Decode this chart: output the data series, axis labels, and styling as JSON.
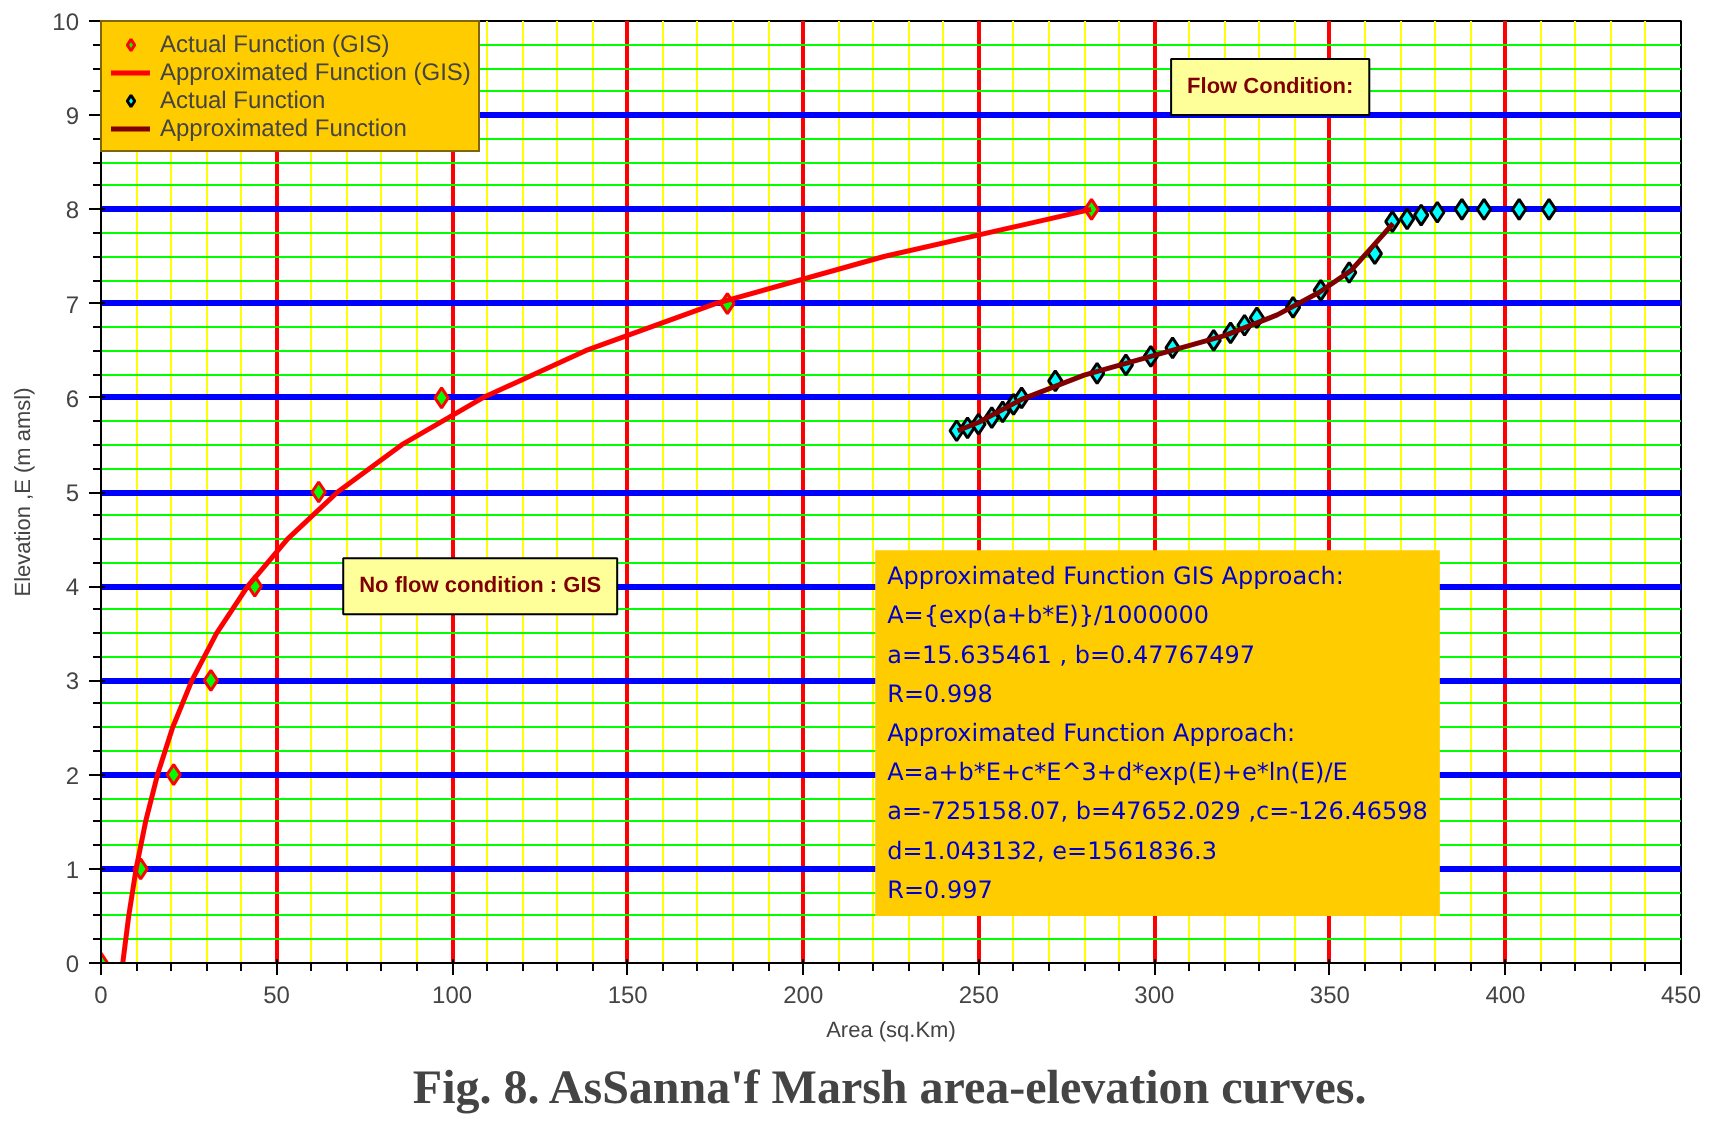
{
  "chart_data": {
    "type": "scatter",
    "title": "Fig. 8. AsSanna'f Marsh area-elevation curves.",
    "xlabel": "Area (sq.Km)",
    "ylabel": "Elevation ,E (m amsl)",
    "xlim": [
      0,
      450
    ],
    "xticks": [
      0,
      {
        "value": 10,
        "label": null
      },
      {
        "value": 20,
        "label": null
      },
      {
        "value": 30,
        "label": null
      },
      {
        "value": 40,
        "label": null
      },
      50,
      {
        "value": 60,
        "label": null
      },
      {
        "value": 70,
        "label": null
      },
      {
        "value": 80,
        "label": null
      },
      {
        "value": 90,
        "label": null
      },
      100,
      {
        "value": 110,
        "label": null
      },
      {
        "value": 120,
        "label": null
      },
      {
        "value": 130,
        "label": null
      },
      {
        "value": 140,
        "label": null
      },
      150,
      {
        "value": 160,
        "label": null
      },
      {
        "value": 170,
        "label": null
      },
      {
        "value": 180,
        "label": null
      },
      {
        "value": 190,
        "label": null
      },
      200,
      {
        "value": 210,
        "label": null
      },
      {
        "value": 220,
        "label": null
      },
      {
        "value": 230,
        "label": null
      },
      {
        "value": 240,
        "label": null
      },
      250,
      {
        "value": 260,
        "label": null
      },
      {
        "value": 270,
        "label": null
      },
      {
        "value": 280,
        "label": null
      },
      {
        "value": 290,
        "label": null
      },
      300,
      {
        "value": 310,
        "label": null
      },
      {
        "value": 320,
        "label": null
      },
      {
        "value": 330,
        "label": null
      },
      {
        "value": 340,
        "label": null
      },
      350,
      {
        "value": 360,
        "label": null
      },
      {
        "value": 370,
        "label": null
      },
      {
        "value": 380,
        "label": null
      },
      {
        "value": 390,
        "label": null
      },
      400,
      {
        "value": 410,
        "label": null
      },
      {
        "value": 420,
        "label": null
      },
      {
        "value": 430,
        "label": null
      },
      {
        "value": 440,
        "label": null
      },
      450
    ],
    "ylim": [
      0,
      10
    ],
    "yticks": [
      0,
      {
        "value": 0.25,
        "label": null
      },
      {
        "value": 0.5,
        "label": null
      },
      {
        "value": 0.75,
        "label": null
      },
      1,
      {
        "value": 1.25,
        "label": null
      },
      {
        "value": 1.5,
        "label": null
      },
      {
        "value": 1.75,
        "label": null
      },
      2,
      {
        "value": 2.25,
        "label": null
      },
      {
        "value": 2.5,
        "label": null
      },
      {
        "value": 2.75,
        "label": null
      },
      3,
      {
        "value": 3.25,
        "label": null
      },
      {
        "value": 3.5,
        "label": null
      },
      {
        "value": 3.75,
        "label": null
      },
      4,
      {
        "value": 4.25,
        "label": null
      },
      {
        "value": 4.5,
        "label": null
      },
      {
        "value": 4.75,
        "label": null
      },
      5,
      {
        "value": 5.25,
        "label": null
      },
      {
        "value": 5.5,
        "label": null
      },
      {
        "value": 5.75,
        "label": null
      },
      6,
      {
        "value": 6.25,
        "label": null
      },
      {
        "value": 6.5,
        "label": null
      },
      {
        "value": 6.75,
        "label": null
      },
      7,
      {
        "value": 7.25,
        "label": null
      },
      {
        "value": 7.5,
        "label": null
      },
      {
        "value": 7.75,
        "label": null
      },
      8,
      {
        "value": 8.25,
        "label": null
      },
      {
        "value": 8.5,
        "label": null
      },
      {
        "value": 8.75,
        "label": null
      },
      9,
      {
        "value": 9.25,
        "label": null
      },
      {
        "value": 9.5,
        "label": null
      },
      {
        "value": 9.75,
        "label": null
      },
      10
    ],
    "grid": true,
    "legend": "top left",
    "series": [
      {
        "name": "Actual Function (GIS)",
        "marker": "diamond",
        "color": "#00ff00",
        "x": [
          0,
          11.3,
          20.7,
          31.3,
          43.8,
          62,
          97,
          178.4,
          282.1
        ],
        "values": [
          0,
          1,
          2,
          3,
          4,
          5,
          6,
          7,
          8
        ]
      },
      {
        "name": "Approximated Function (GIS)",
        "type": "line",
        "color": "#ff0000",
        "x": [
          6.2,
          7.9,
          10,
          12.7,
          16.1,
          20.4,
          25.9,
          32.9,
          41.8,
          53.1,
          67.4,
          85.6,
          108.7,
          138,
          175,
          223,
          282
        ],
        "values": [
          0,
          0.5,
          1,
          1.5,
          2,
          2.5,
          3,
          3.5,
          4,
          4.5,
          5,
          5.5,
          6,
          6.5,
          7,
          7.5,
          8
        ]
      },
      {
        "name": "Actual Function",
        "marker": "diamond",
        "color": "#00ffff",
        "x": [
          243.7,
          246.8,
          249.9,
          253.7,
          256.8,
          259.9,
          262.2,
          271.8,
          283.7,
          291.9,
          299.0,
          305.2,
          316.9,
          321.7,
          325.7,
          329.2,
          339.5,
          347.4,
          355.5,
          362.8,
          367.8,
          372.0,
          376.0,
          380.6,
          387.6,
          393.9,
          403.9,
          412.4
        ],
        "values": [
          5.65,
          5.68,
          5.72,
          5.79,
          5.85,
          5.93,
          6.0,
          6.18,
          6.26,
          6.35,
          6.44,
          6.53,
          6.61,
          6.69,
          6.77,
          6.85,
          6.96,
          7.14,
          7.33,
          7.53,
          7.87,
          7.9,
          7.94,
          7.97,
          8.0,
          8.0,
          8.0,
          8.0
        ]
      },
      {
        "name": "Approximated Function",
        "type": "line",
        "color": "#800000",
        "x": [
          244,
          250,
          262,
          280,
          300,
          320,
          335,
          347,
          356,
          362,
          368
        ],
        "values": [
          5.65,
          5.74,
          5.98,
          6.24,
          6.45,
          6.66,
          6.88,
          7.12,
          7.35,
          7.6,
          7.85
        ]
      }
    ],
    "annotations": [
      "No flow condition : GIS",
      "Flow Condition:",
      "Approximated Function GIS Approach:",
      "A={exp(a+b*E)}/1000000",
      "a=15.635461   ,  b=0.47767497",
      "R=0.998",
      "Approximated Function Approach:",
      "A=a+b*E+c*E^3+d*exp(E)+e*ln(E)/E",
      "a=-725158.07, b=47652.029 ,c=-126.46598",
      "d=1.043132, e=1561836.3",
      "R=0.997"
    ]
  }
}
